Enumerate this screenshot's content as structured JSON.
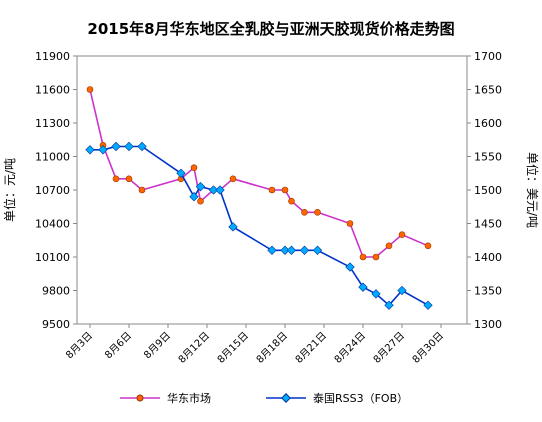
{
  "chart_data": {
    "type": "line",
    "title": "2015年8月华东地区全乳胶与亚洲天胶现货价格走势图",
    "ylabel_left": "单位：元/吨",
    "ylabel_right": "单位：美元/吨",
    "x_ticks": [
      "8月3日",
      "8月6日",
      "8月9日",
      "8月12日",
      "8月15日",
      "8月18日",
      "8月21日",
      "8月24日",
      "8月27日",
      "8月30日"
    ],
    "x_tick_days": [
      3,
      6,
      9,
      12,
      15,
      18,
      21,
      24,
      27,
      30
    ],
    "xlim": [
      2,
      32
    ],
    "ylim_left": [
      9500,
      11900
    ],
    "yticks_left": [
      9500,
      9800,
      10100,
      10400,
      10700,
      11000,
      11300,
      11600,
      11900
    ],
    "ylim_right": [
      1300,
      1700
    ],
    "yticks_right": [
      1300,
      1350,
      1400,
      1450,
      1500,
      1550,
      1600,
      1650,
      1700
    ],
    "grid": false,
    "legend_position": "bottom",
    "series": [
      {
        "name": "华东市场",
        "axis": "left",
        "color": "#cc33cc",
        "marker_color": "#ff6600",
        "x": [
          3,
          4,
          5,
          6,
          7,
          10,
          11,
          11.5,
          12.5,
          13,
          14,
          17,
          18,
          18.5,
          19.5,
          20.5,
          23,
          24,
          25,
          26,
          27,
          29
        ],
        "y": [
          11600,
          11100,
          10800,
          10800,
          10700,
          10800,
          10900,
          10600,
          10700,
          10700,
          10800,
          10700,
          10700,
          10600,
          10500,
          10500,
          10400,
          10100,
          10100,
          10200,
          10300,
          10200
        ]
      },
      {
        "name": "泰国RSS3（FOB）",
        "axis": "right",
        "color": "#0033cc",
        "marker_color": "#00aaff",
        "x": [
          3,
          4,
          5,
          6,
          7,
          10,
          11,
          11.5,
          12.5,
          13,
          14,
          17,
          18,
          18.5,
          19.5,
          20.5,
          23,
          24,
          25,
          26,
          27,
          29
        ],
        "y": [
          1560,
          1560,
          1565,
          1565,
          1565,
          1525,
          1490,
          1505,
          1500,
          1500,
          1445,
          1410,
          1410,
          1410,
          1410,
          1410,
          1385,
          1355,
          1345,
          1328,
          1350,
          1328
        ]
      }
    ]
  }
}
